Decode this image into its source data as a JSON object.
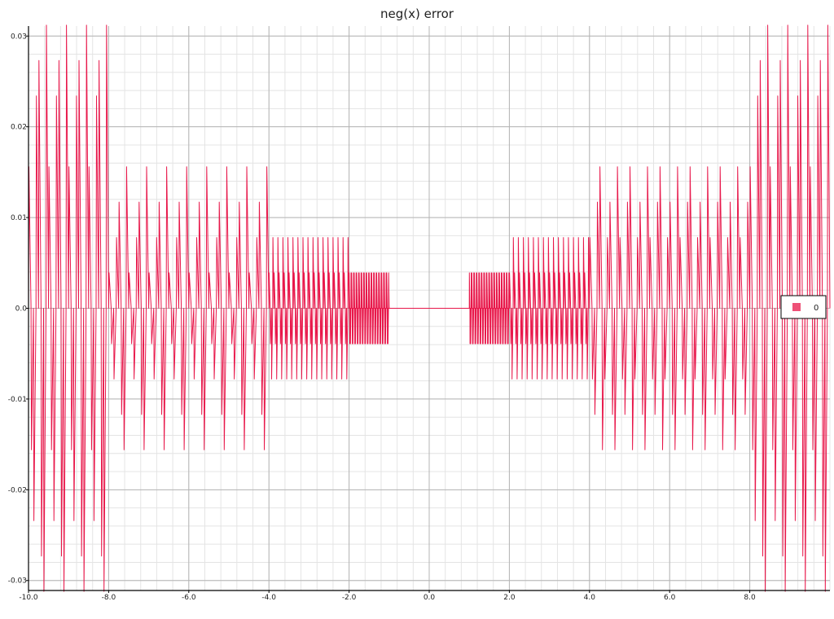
{
  "chart_data": {
    "type": "line",
    "title": "neg(x) error",
    "xlabel": "",
    "ylabel": "",
    "xlim": [
      -10.0,
      10.0
    ],
    "ylim": [
      -0.0311,
      0.0311
    ],
    "grid": true,
    "x_ticks": [
      -10.0,
      -8.0,
      -6.0,
      -4.0,
      -2.0,
      0.0,
      2.0,
      4.0,
      6.0,
      8.0
    ],
    "x_tick_labels": [
      "-10.0",
      "-8.0",
      "-6.0",
      "-4.0",
      "-2.0",
      "0.0",
      "2.0",
      "4.0",
      "6.0",
      "8.0"
    ],
    "y_ticks": [
      0.03,
      0.02,
      0.01,
      0.0,
      -0.01,
      -0.02,
      -0.03
    ],
    "y_tick_labels": [
      "0.03",
      "0.02",
      "0.01",
      "0.0",
      "-0.01",
      "-0.02",
      "-0.03"
    ],
    "legend": {
      "position": "right",
      "entries": [
        "0"
      ]
    },
    "series": [
      {
        "name": "0",
        "color": "#e8174a",
        "segments": [
          {
            "x_start": -10.0,
            "x_end": -8.0,
            "levels": [
              0.0156,
              0.0234,
              0.0273,
              0.0312
            ],
            "period": 0.125
          },
          {
            "x_start": -8.0,
            "x_end": -4.0,
            "levels": [
              0.0039,
              0.0078,
              0.0117,
              0.0156
            ],
            "period": 0.125
          },
          {
            "x_start": -4.0,
            "x_end": -2.0,
            "levels": [
              0.0039,
              0.0078
            ],
            "period": 0.0625
          },
          {
            "x_start": -2.0,
            "x_end": -1.0,
            "levels": [
              0.0039
            ],
            "period": 0.03125
          },
          {
            "x_start": -1.0,
            "x_end": 1.0,
            "levels": [
              0.0
            ],
            "period": 0.03125
          },
          {
            "x_start": 1.0,
            "x_end": 2.0,
            "levels": [
              0.0039
            ],
            "period": 0.03125
          },
          {
            "x_start": 2.0,
            "x_end": 4.0,
            "levels": [
              0.0039,
              0.0078
            ],
            "period": 0.0625
          },
          {
            "x_start": 4.0,
            "x_end": 8.0,
            "levels": [
              0.0078,
              0.0117,
              0.0156
            ],
            "period": 0.125
          },
          {
            "x_start": 8.0,
            "x_end": 10.0,
            "levels": [
              0.0156,
              0.0234,
              0.0273,
              0.0312
            ],
            "period": 0.125
          }
        ]
      }
    ]
  }
}
